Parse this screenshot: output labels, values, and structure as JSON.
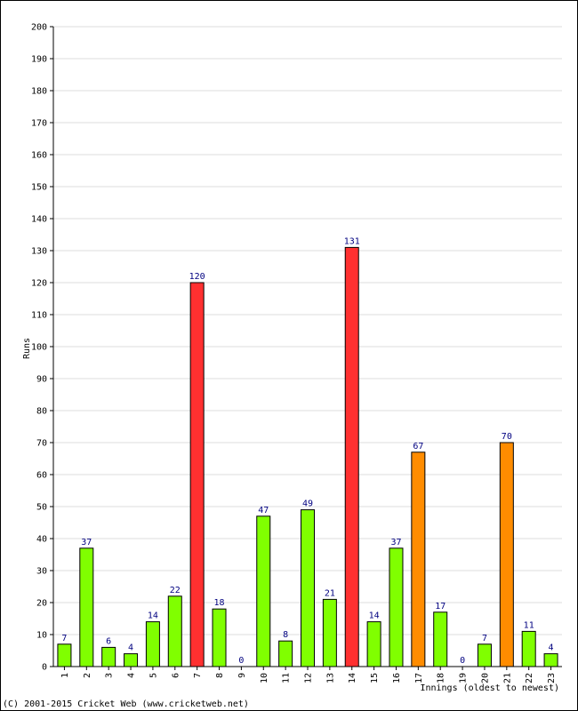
{
  "chart_data": {
    "type": "bar",
    "categories": [
      "1",
      "2",
      "3",
      "4",
      "5",
      "6",
      "7",
      "8",
      "9",
      "10",
      "11",
      "12",
      "13",
      "14",
      "15",
      "16",
      "17",
      "18",
      "19",
      "20",
      "21",
      "22",
      "23"
    ],
    "values": [
      7,
      37,
      6,
      4,
      14,
      22,
      120,
      18,
      0,
      47,
      8,
      49,
      21,
      131,
      14,
      37,
      67,
      17,
      0,
      7,
      70,
      11,
      4
    ],
    "ylabel": "Runs",
    "xlabel": "Innings (oldest to newest)",
    "ylim": [
      0,
      200
    ],
    "yticks": [
      0,
      10,
      20,
      30,
      40,
      50,
      60,
      70,
      80,
      90,
      100,
      110,
      120,
      130,
      140,
      150,
      160,
      170,
      180,
      190,
      200
    ],
    "grid": true,
    "colors": {
      "normal": "#80ff00",
      "fifty": "#ff8c00",
      "hundred": "#ff3030",
      "label": "#000080",
      "grid": "#dddddd"
    }
  },
  "footer": {
    "copyright": "(C) 2001-2015 Cricket Web (www.cricketweb.net)"
  }
}
